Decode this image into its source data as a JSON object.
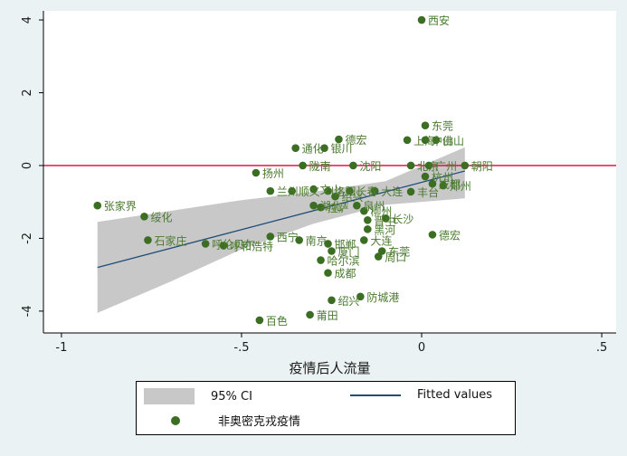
{
  "chart_data": {
    "type": "scatter",
    "xlabel": "疫情后人流量",
    "ylabel": "",
    "xlim": [
      -1.05,
      0.54
    ],
    "ylim": [
      -4.6,
      4.25
    ],
    "xticks": [
      -1,
      -0.5,
      0,
      0.5
    ],
    "xtick_labels": [
      "-1",
      "-.5",
      "0",
      ".5"
    ],
    "yticks": [
      -4,
      -2,
      0,
      2,
      4
    ],
    "ytick_labels": [
      "-4",
      "-2",
      "0",
      "2",
      "4"
    ],
    "reference_line_y": 0,
    "colors": {
      "background": "#eaf2f3",
      "plot_area": "#ffffff",
      "points": "#3b6e22",
      "labels": "#4a7a2e",
      "ci_band": "#c8c8c8",
      "fit_line": "#1f4e79",
      "reference_line": "#e0003a"
    },
    "fitted_line": {
      "x": [
        -0.9,
        0.12
      ],
      "y": [
        -2.8,
        -0.15
      ]
    },
    "ci_band": {
      "x": [
        -0.9,
        -0.7,
        -0.5,
        -0.3,
        -0.1,
        0.12
      ],
      "upper": [
        -1.55,
        -1.25,
        -0.95,
        -0.72,
        -0.43,
        0.5
      ],
      "lower": [
        -4.05,
        -3.2,
        -2.3,
        -1.6,
        -1.08,
        -0.9
      ]
    },
    "points": [
      {
        "x": 0.0,
        "y": 4.0,
        "label": "西安"
      },
      {
        "x": 0.01,
        "y": 1.1,
        "label": "东莞"
      },
      {
        "x": -0.04,
        "y": 0.7,
        "label": "上海"
      },
      {
        "x": 0.01,
        "y": 0.7,
        "label": "中山"
      },
      {
        "x": 0.04,
        "y": 0.7,
        "label": "佛山"
      },
      {
        "x": -0.23,
        "y": 0.72,
        "label": "德宏"
      },
      {
        "x": -0.35,
        "y": 0.48,
        "label": "通化"
      },
      {
        "x": -0.27,
        "y": 0.48,
        "label": "银川"
      },
      {
        "x": -0.33,
        "y": 0.0,
        "label": "陇南"
      },
      {
        "x": -0.19,
        "y": 0.0,
        "label": "沈阳"
      },
      {
        "x": -0.03,
        "y": 0.0,
        "label": "北京"
      },
      {
        "x": 0.02,
        "y": 0.0,
        "label": "广州"
      },
      {
        "x": 0.12,
        "y": 0.0,
        "label": "朝阳"
      },
      {
        "x": -0.46,
        "y": -0.2,
        "label": "扬州"
      },
      {
        "x": 0.01,
        "y": -0.3,
        "label": "杭州"
      },
      {
        "x": 0.03,
        "y": -0.5,
        "label": "成都"
      },
      {
        "x": 0.06,
        "y": -0.55,
        "label": "郑州"
      },
      {
        "x": -0.42,
        "y": -0.7,
        "label": "兰州"
      },
      {
        "x": -0.36,
        "y": -0.7,
        "label": "顺义"
      },
      {
        "x": -0.3,
        "y": -0.65,
        "label": "文山"
      },
      {
        "x": -0.26,
        "y": -0.7,
        "label": "洛阳"
      },
      {
        "x": -0.2,
        "y": -0.7,
        "label": "长春"
      },
      {
        "x": -0.13,
        "y": -0.7,
        "label": "大连"
      },
      {
        "x": -0.03,
        "y": -0.72,
        "label": "丰台"
      },
      {
        "x": -0.24,
        "y": -0.85,
        "label": "绍兴"
      },
      {
        "x": -0.3,
        "y": -1.1,
        "label": "湖北"
      },
      {
        "x": -0.28,
        "y": -1.15,
        "label": "拉萨"
      },
      {
        "x": -0.18,
        "y": -1.1,
        "label": "泉州"
      },
      {
        "x": -0.16,
        "y": -1.25,
        "label": "柳州"
      },
      {
        "x": -0.15,
        "y": -1.5,
        "label": "晋中"
      },
      {
        "x": -0.1,
        "y": -1.45,
        "label": "长沙"
      },
      {
        "x": -0.9,
        "y": -1.1,
        "label": "张家界"
      },
      {
        "x": -0.77,
        "y": -1.4,
        "label": "绥化"
      },
      {
        "x": -0.15,
        "y": -1.75,
        "label": "黑河"
      },
      {
        "x": 0.03,
        "y": -1.9,
        "label": "德宏"
      },
      {
        "x": -0.42,
        "y": -1.95,
        "label": "西宁"
      },
      {
        "x": -0.76,
        "y": -2.05,
        "label": "石家庄"
      },
      {
        "x": -0.6,
        "y": -2.15,
        "label": "呼伦贝尔"
      },
      {
        "x": -0.55,
        "y": -2.2,
        "label": "呼和浩特"
      },
      {
        "x": -0.34,
        "y": -2.05,
        "label": "南京"
      },
      {
        "x": -0.26,
        "y": -2.15,
        "label": "邯郸"
      },
      {
        "x": -0.16,
        "y": -2.05,
        "label": "大连"
      },
      {
        "x": -0.25,
        "y": -2.35,
        "label": "厦门"
      },
      {
        "x": -0.11,
        "y": -2.35,
        "label": "东莞"
      },
      {
        "x": -0.12,
        "y": -2.5,
        "label": "周口"
      },
      {
        "x": -0.28,
        "y": -2.6,
        "label": "哈尔滨"
      },
      {
        "x": -0.26,
        "y": -2.95,
        "label": "成都"
      },
      {
        "x": -0.17,
        "y": -3.6,
        "label": "防城港"
      },
      {
        "x": -0.25,
        "y": -3.7,
        "label": "绍兴"
      },
      {
        "x": -0.31,
        "y": -4.1,
        "label": "莆田"
      },
      {
        "x": -0.45,
        "y": -4.25,
        "label": "百色"
      }
    ],
    "legend": {
      "position": "bottom",
      "entries": [
        "95% CI",
        "Fitted values",
        "非奥密克戎疫情"
      ]
    }
  }
}
